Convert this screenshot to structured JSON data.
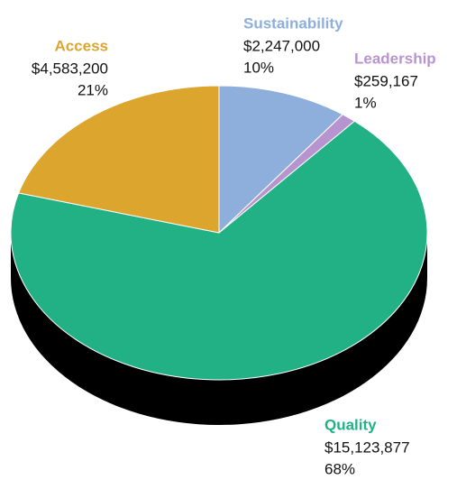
{
  "chart_data": {
    "type": "pie",
    "categories": [
      "Sustainability",
      "Leadership",
      "Quality",
      "Access"
    ],
    "values": [
      2247000,
      259167,
      15123877,
      4583200
    ],
    "value_labels": [
      "$2,247,000",
      "$259,167",
      "$15,123,877",
      "$4,583,200"
    ],
    "percentages": [
      10,
      1,
      68,
      21
    ],
    "percentage_labels": [
      "10%",
      "1%",
      "68%",
      "21%"
    ],
    "colors": [
      "#8eaedc",
      "#b794d0",
      "#22b085",
      "#dba52e"
    ]
  }
}
